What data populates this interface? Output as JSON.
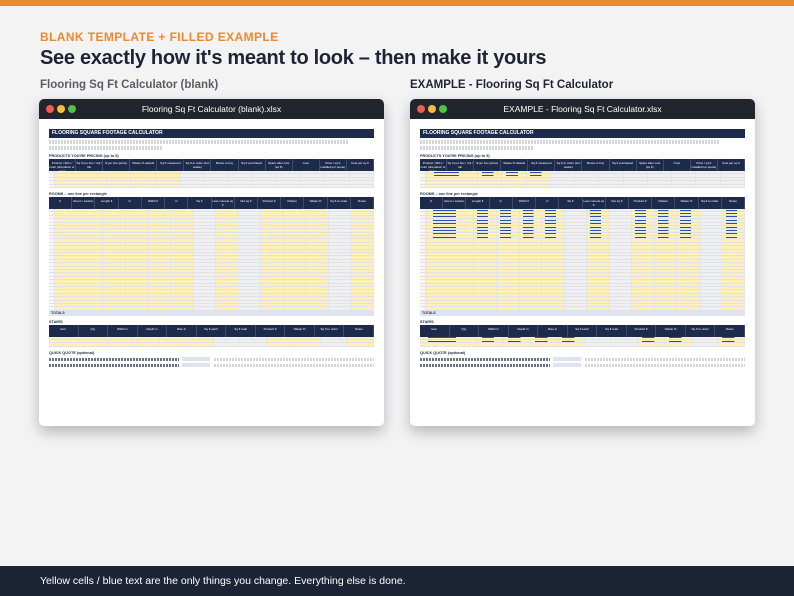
{
  "header": {
    "eyebrow": "BLANK TEMPLATE  +  FILLED EXAMPLE",
    "headline": "See exactly how it's meant to look – then make it yours",
    "left_label": "Flooring Sq Ft Calculator (blank)",
    "right_label": "EXAMPLE - Flooring Sq Ft Calculator"
  },
  "windows": {
    "left_title": "Flooring Sq Ft Calculator (blank).xlsx",
    "right_title": "EXAMPLE - Flooring Sq Ft Calculator.xlsx"
  },
  "sheet": {
    "title": "FLOORING SQUARE FOOTAGE CALCULATOR",
    "products_section": "PRODUCTS YOU'RE PRICING (up to 5)",
    "rooms_section": "ROOMS – one line per rectangle",
    "totals_label": "TOTALS",
    "stairs_section": "STAIRS",
    "quote_section": "QUICK QUOTE (optional)",
    "product_headers": [
      "Product / SKU / color (dropdown or type)",
      "Sq ft per box / roll / tile",
      "$ per box (price)",
      "Waste % default",
      "Sq ft measured",
      "Sq ft to order (incl waste)",
      "Boxes to buy",
      "Sq ft purchased",
      "Spare after cuts (sq ft)",
      "Cost",
      "Price / sq ft installed (or quote)",
      "Cost per sq ft"
    ],
    "room_headers": [
      "#",
      "Room / section",
      "Length ft",
      "in",
      "Width ft",
      "in",
      "Sq ft",
      "Less cutouts sq ft",
      "Net sq ft",
      "Product #",
      "Pattern",
      "Waste %",
      "Sq ft to order",
      "Notes"
    ],
    "stairs_headers": [
      "Item",
      "Qty",
      "Width in",
      "Depth in",
      "Rise in",
      "Sq ft each",
      "Sq ft total",
      "Product #",
      "Waste %",
      "Sq ft to order",
      "Notes"
    ]
  },
  "footer": {
    "text": "Yellow cells / blue text are the only things you change. Everything else is done."
  },
  "colors": {
    "accent": "#e98a2f",
    "navy": "#1d2435",
    "input_yellow": "#fdf0b9"
  }
}
